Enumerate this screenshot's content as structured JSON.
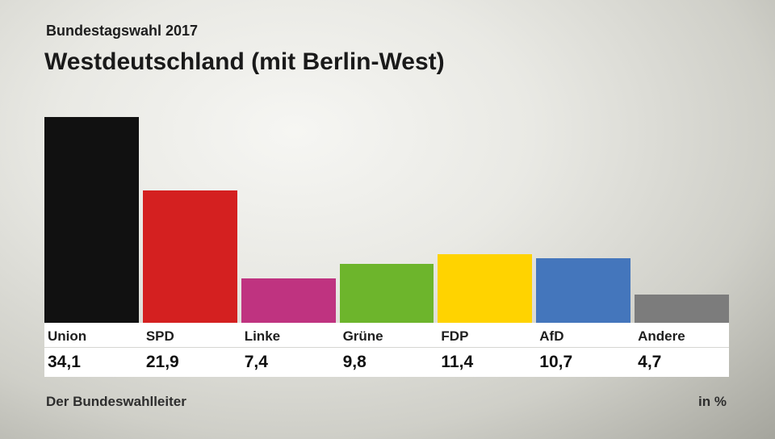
{
  "header": {
    "subtitle": "Bundestagswahl 2017",
    "title": "Westdeutschland (mit Berlin-West)"
  },
  "footer": {
    "left": "Der Bundeswahlleiter",
    "right": "in %"
  },
  "chart_data": {
    "type": "bar",
    "title": "Westdeutschland (mit Berlin-West)",
    "subtitle": "Bundestagswahl 2017",
    "unit": "%",
    "categories": [
      "Union",
      "SPD",
      "Linke",
      "Grüne",
      "FDP",
      "AfD",
      "Andere"
    ],
    "values": [
      34.1,
      21.9,
      7.4,
      9.8,
      11.4,
      10.7,
      4.7
    ],
    "value_labels": [
      "34,1",
      "21,9",
      "7,4",
      "9,8",
      "11,4",
      "10,7",
      "4,7"
    ],
    "colors": [
      "#111111",
      "#d42020",
      "#bf3380",
      "#6db52c",
      "#ffd300",
      "#4476bc",
      "#7c7c7c"
    ],
    "ylim": [
      0,
      34.1
    ],
    "grid": false,
    "legend_position": "none"
  }
}
